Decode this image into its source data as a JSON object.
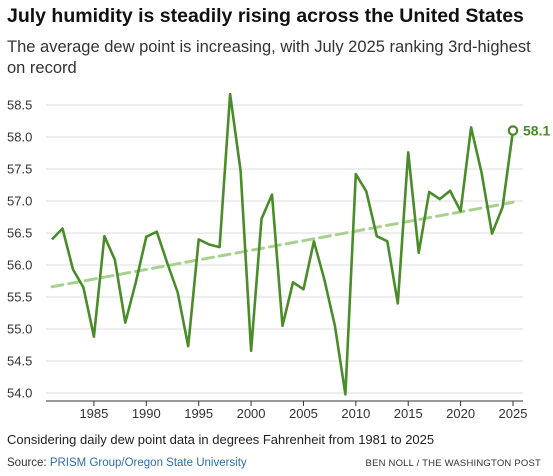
{
  "header": {
    "title": "July humidity is steadily rising across the United States",
    "subtitle": "The average dew point is increasing, with July 2025 ranking 3rd-highest on record"
  },
  "footer": {
    "note": "Considering daily dew point data in degrees Fahrenheit from 1981 to 2025",
    "source_prefix": "Source: ",
    "source_link": "PRISM Group/Oregon State University",
    "credit": "BEN NOLL / THE WASHINGTON POST"
  },
  "colors": {
    "line": "#4a8c2a",
    "trend": "#a9d18e",
    "grid": "#dddddd",
    "axis": "#333333"
  },
  "chart_data": {
    "type": "line",
    "title": "July humidity is steadily rising across the United States",
    "subtitle": "The average dew point is increasing, with July 2025 ranking 3rd-highest on record",
    "xlabel": "",
    "ylabel": "",
    "xlim": [
      1981,
      2025
    ],
    "ylim": [
      54.0,
      58.5
    ],
    "x_ticks": [
      1985,
      1990,
      1995,
      2000,
      2005,
      2010,
      2015,
      2020,
      2025
    ],
    "y_ticks": [
      54.0,
      54.5,
      55.0,
      55.5,
      56.0,
      56.5,
      57.0,
      57.5,
      58.0,
      58.5
    ],
    "y_tick_labels": [
      "54.0",
      "54.5",
      "55.0",
      "55.5",
      "56.0",
      "56.5",
      "57.0",
      "57.5",
      "58.0",
      "58.5"
    ],
    "grid": "horizontal",
    "series": [
      {
        "kind": "observed",
        "x": [
          1981,
          1982,
          1983,
          1984,
          1985,
          1986,
          1987,
          1988,
          1989,
          1990,
          1991,
          1992,
          1993,
          1994,
          1995,
          1996,
          1997,
          1998,
          1999,
          2000,
          2001,
          2002,
          2003,
          2004,
          2005,
          2006,
          2007,
          2008,
          2009,
          2010,
          2011,
          2012,
          2013,
          2014,
          2015,
          2016,
          2017,
          2018,
          2019,
          2020,
          2021,
          2022,
          2023,
          2024,
          2025
        ],
        "values": [
          56.4,
          56.57,
          55.93,
          55.65,
          54.88,
          56.45,
          56.08,
          55.1,
          55.73,
          56.44,
          56.52,
          56.03,
          55.57,
          54.73,
          56.4,
          56.32,
          56.28,
          58.67,
          57.47,
          54.66,
          56.72,
          57.1,
          55.05,
          55.73,
          55.62,
          56.37,
          55.77,
          55.05,
          53.98,
          57.42,
          57.15,
          56.45,
          56.37,
          55.4,
          57.76,
          56.19,
          57.14,
          57.03,
          57.16,
          56.84,
          58.15,
          57.44,
          56.49,
          56.9,
          58.1
        ]
      },
      {
        "kind": "trend",
        "x": [
          1981,
          2025
        ],
        "values": [
          55.66,
          56.98
        ]
      }
    ],
    "annotations": [
      {
        "x": 2025,
        "y": 58.1,
        "text": "58.1"
      }
    ]
  }
}
